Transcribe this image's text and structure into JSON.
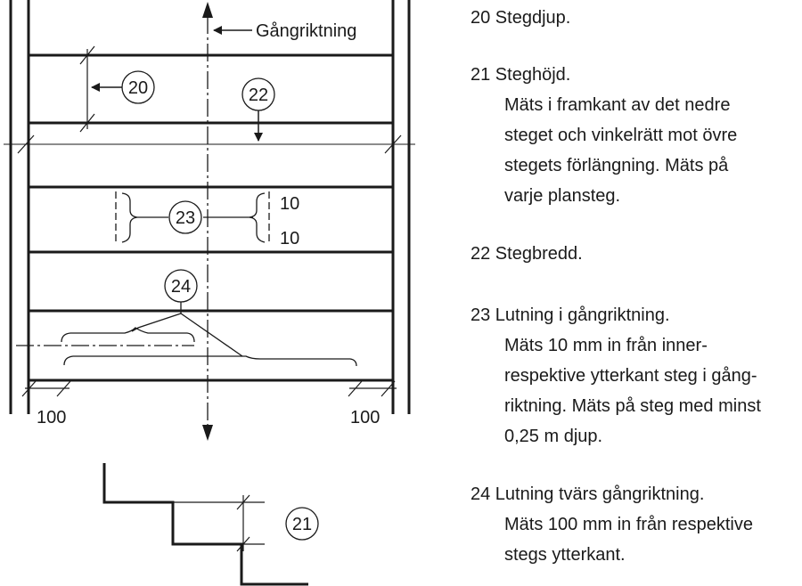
{
  "diagram": {
    "direction_label": "Gångriktning",
    "markers": {
      "m20": "20",
      "m21": "21",
      "m22": "22",
      "m23": "23",
      "m24": "24"
    },
    "offsets": {
      "inner_top": "10",
      "inner_bottom": "10",
      "edge_left": "100",
      "edge_right": "100"
    }
  },
  "legend": [
    {
      "head": "20   Stegdjup.",
      "body": []
    },
    {
      "head": "21  Steghöjd.",
      "body": [
        "Mäts i framkant av det nedre",
        "steget och vinkelrätt mot övre",
        "stegets förlängning. Mäts på",
        "varje plansteg."
      ]
    },
    {
      "head": "22  Stegbredd.",
      "body": []
    },
    {
      "head": "23  Lutning i gångriktning.",
      "body": [
        "Mäts 10 mm in från inner-",
        "respektive ytterkant steg i gång-",
        "riktning. Mäts på steg med minst",
        "0,25 m djup."
      ]
    },
    {
      "head": "24  Lutning tvärs gångriktning.",
      "body": [
        "Mäts 100 mm in från respektive",
        "stegs ytterkant."
      ]
    }
  ]
}
